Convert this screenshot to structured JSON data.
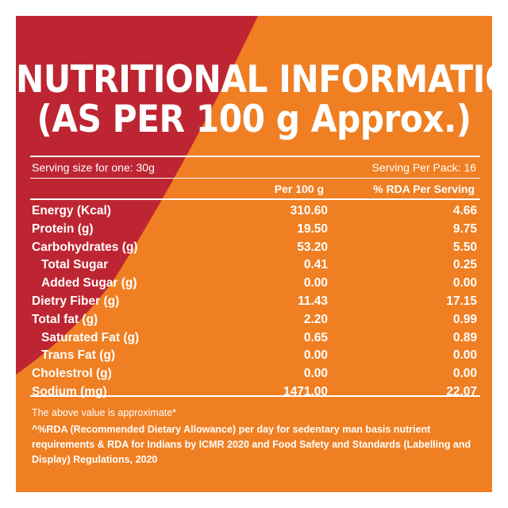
{
  "colors": {
    "orange": "#EF7F22",
    "red": "#BE2532",
    "text": "#FFFFFF"
  },
  "title": {
    "line1": "NUTRITIONAL INFORMATION",
    "line2": "(AS PER 100 g Approx.)"
  },
  "serving": {
    "size": "Serving size for one: 30g",
    "per_pack": "Serving Per Pack: 16"
  },
  "columns": {
    "per100": "Per 100 g",
    "rda": "% RDA Per Serving"
  },
  "rows": [
    {
      "name": "Energy (Kcal)",
      "per100": "310.60",
      "rda": "4.66",
      "indent": false
    },
    {
      "name": "Protein (g)",
      "per100": "19.50",
      "rda": "9.75",
      "indent": false
    },
    {
      "name": "Carbohydrates (g)",
      "per100": "53.20",
      "rda": "5.50",
      "indent": false
    },
    {
      "name": "Total Sugar",
      "per100": "0.41",
      "rda": "0.25",
      "indent": true
    },
    {
      "name": "Added Sugar (g)",
      "per100": "0.00",
      "rda": "0.00",
      "indent": true
    },
    {
      "name": "Dietry Fiber (g)",
      "per100": "11.43",
      "rda": "17.15",
      "indent": false
    },
    {
      "name": "Total fat (g)",
      "per100": "2.20",
      "rda": "0.99",
      "indent": false
    },
    {
      "name": "Saturated Fat (g)",
      "per100": "0.65",
      "rda": "0.89",
      "indent": true
    },
    {
      "name": "Trans Fat (g)",
      "per100": "0.00",
      "rda": "0.00",
      "indent": true
    },
    {
      "name": "Cholestrol (g)",
      "per100": "0.00",
      "rda": "0.00",
      "indent": false
    },
    {
      "name": "Sodium (mg)",
      "per100": "1471.00",
      "rda": "22.07",
      "indent": false
    }
  ],
  "footer": {
    "note": "The above value is approximate*",
    "rda_note": "^%RDA (Recommended Dietary Allowance) per day for sedentary man basis nutrient requirements & RDA for Indians by ICMR 2020 and Food Safety and Standards (Labelling and Display) Regulations, 2020"
  }
}
